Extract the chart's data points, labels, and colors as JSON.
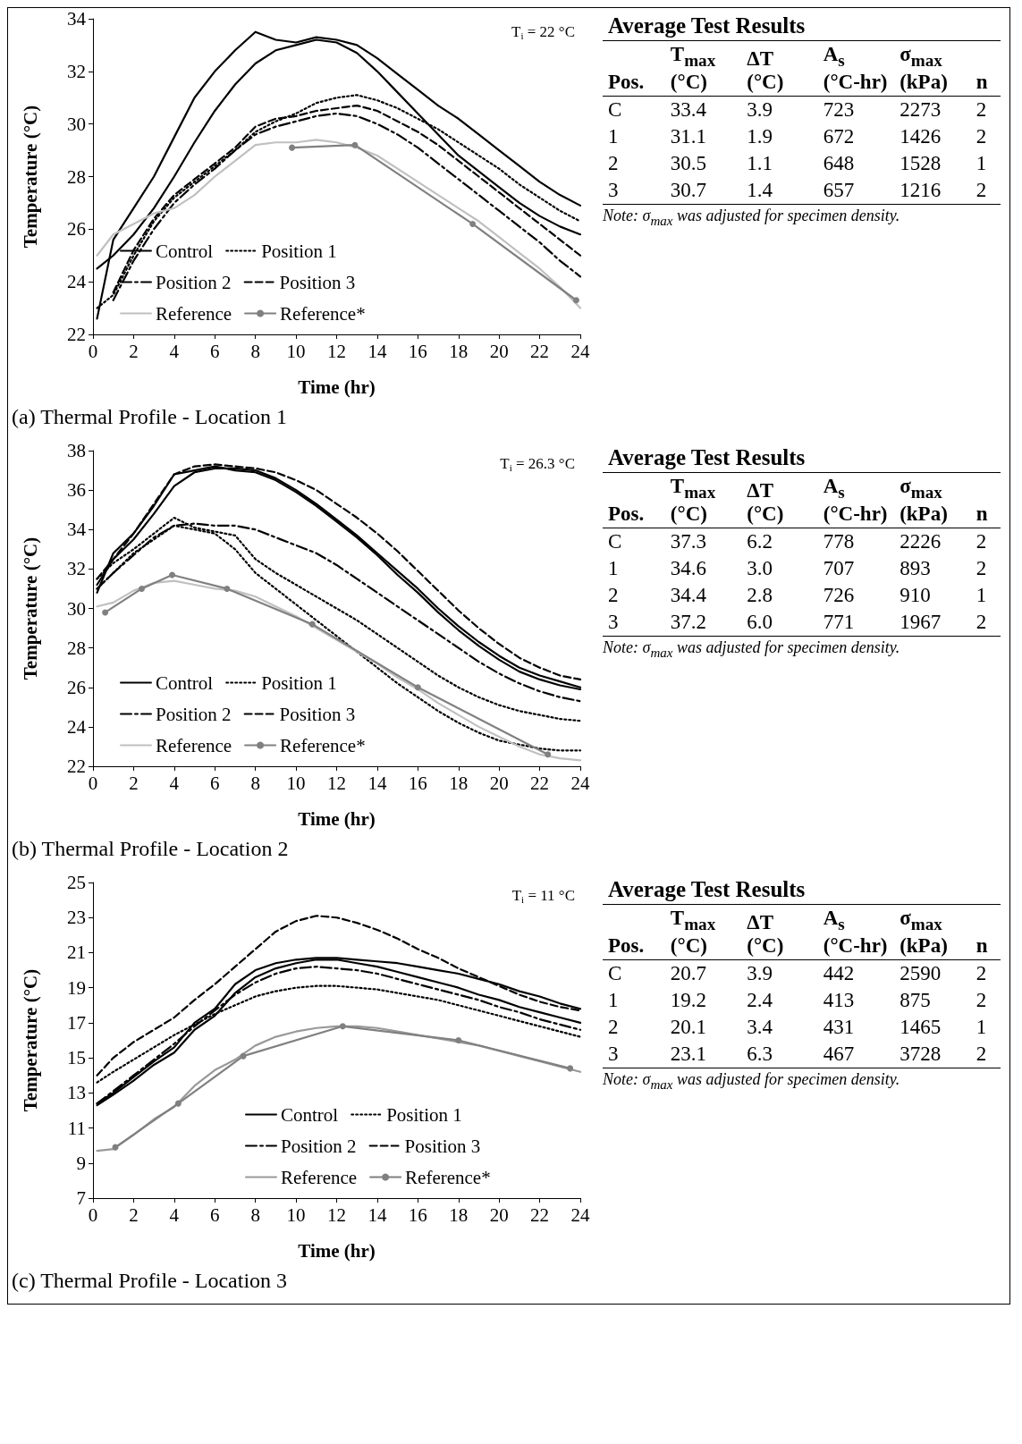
{
  "chart_data": [
    {
      "type": "line",
      "xlabel": "Time (hr)",
      "ylabel": "Temperature (°C)",
      "xlim": [
        0,
        24
      ],
      "ylim": [
        22,
        34
      ],
      "xticks": [
        0,
        2,
        4,
        6,
        8,
        10,
        12,
        14,
        16,
        18,
        20,
        22,
        24
      ],
      "yticks": [
        22,
        24,
        26,
        28,
        30,
        32,
        34
      ],
      "grid": false,
      "legend": "bottom left",
      "annotations": [
        "T$_{i}$ = 22 °C",
        "(a) Thermal Profile - Location 1"
      ],
      "x": [
        0.2,
        1,
        2,
        3,
        4,
        5,
        6,
        7,
        8,
        9,
        10,
        11,
        12,
        13,
        14,
        15,
        16,
        17,
        18,
        19,
        20,
        21,
        22,
        23,
        24
      ],
      "series": [
        {
          "name": "Control",
          "color": "#000000",
          "line_style": "solid",
          "marker": "none",
          "values": [
            22.6,
            25.6,
            26.8,
            28.0,
            29.5,
            31.0,
            32.0,
            32.8,
            33.5,
            33.2,
            33.1,
            33.3,
            33.2,
            33.0,
            32.5,
            31.9,
            31.3,
            30.7,
            30.2,
            29.6,
            29.0,
            28.4,
            27.8,
            27.3,
            26.9
          ]
        },
        {
          "color": "#000000",
          "line_style": "solid",
          "marker": "none",
          "values": [
            24.5,
            25.0,
            25.8,
            26.8,
            28.0,
            29.3,
            30.5,
            31.5,
            32.3,
            32.8,
            33.0,
            33.2,
            33.1,
            32.7,
            32.0,
            31.2,
            30.4,
            29.6,
            28.8,
            28.2,
            27.6,
            27.0,
            26.5,
            26.1,
            25.8
          ]
        },
        {
          "name": "Position 1",
          "color": "#000000",
          "line_style": "dotted",
          "marker": "none",
          "values": [
            23.0,
            23.5,
            25.0,
            26.3,
            27.2,
            27.8,
            28.4,
            29.0,
            29.7,
            30.1,
            30.4,
            30.8,
            31.0,
            31.1,
            30.9,
            30.6,
            30.2,
            29.8,
            29.3,
            28.8,
            28.3,
            27.7,
            27.2,
            26.7,
            26.3
          ]
        },
        {
          "name": "Position 2",
          "color": "#000000",
          "line_style": "dashdot",
          "marker": "none",
          "values": [
            null,
            23.3,
            24.8,
            26.0,
            27.0,
            27.7,
            28.3,
            29.0,
            29.6,
            29.9,
            30.1,
            30.3,
            30.4,
            30.3,
            30.0,
            29.6,
            29.1,
            28.5,
            27.9,
            27.3,
            26.7,
            26.1,
            25.5,
            24.8,
            24.2
          ]
        },
        {
          "name": "Position 3",
          "color": "#000000",
          "line_style": "dashed",
          "marker": "none",
          "values": [
            null,
            23.6,
            25.2,
            26.4,
            27.3,
            27.9,
            28.5,
            29.1,
            29.9,
            30.2,
            30.3,
            30.5,
            30.6,
            30.7,
            30.5,
            30.1,
            29.7,
            29.2,
            28.6,
            28.0,
            27.4,
            26.8,
            26.2,
            25.6,
            25.0
          ]
        },
        {
          "name": "Reference",
          "color": "#c0c0c0",
          "line_style": "solid",
          "marker": "none",
          "values": [
            25.0,
            25.8,
            26.2,
            26.6,
            26.8,
            27.3,
            28.0,
            28.6,
            29.2,
            29.3,
            29.3,
            29.4,
            29.3,
            29.1,
            28.8,
            28.3,
            27.8,
            27.3,
            26.8,
            26.3,
            25.7,
            25.1,
            24.5,
            23.8,
            23.0
          ]
        },
        {
          "name": "Reference*",
          "color": "#808080",
          "line_style": "solid",
          "marker": "circle",
          "x": [
            9.8,
            12.9,
            18.7,
            23.8
          ],
          "values": [
            29.1,
            29.2,
            26.2,
            23.3
          ]
        }
      ]
    },
    {
      "type": "other",
      "title": "Average Test Results",
      "categories": [
        "Pos.",
        "T$_{max}$ (°C)",
        "ΔT (°C)",
        "A$_{s}$ (°C-hr)",
        "σ$_{max}$ (kPa)",
        "n"
      ],
      "cell_labels": [
        [
          "C",
          "33.4",
          "3.9",
          "723",
          "2273",
          "2"
        ],
        [
          "1",
          "31.1",
          "1.9",
          "672",
          "1426",
          "2"
        ],
        [
          "2",
          "30.5",
          "1.1",
          "648",
          "1528",
          "1"
        ],
        [
          "3",
          "30.7",
          "1.4",
          "657",
          "1216",
          "2"
        ]
      ],
      "annotations": [
        "Note: σ$_{max}$ was adjusted for specimen density."
      ]
    },
    {
      "type": "line",
      "xlabel": "Time (hr)",
      "ylabel": "Temperature (°C)",
      "xlim": [
        0,
        24
      ],
      "ylim": [
        22,
        38
      ],
      "xticks": [
        0,
        2,
        4,
        6,
        8,
        10,
        12,
        14,
        16,
        18,
        20,
        22,
        24
      ],
      "yticks": [
        22,
        24,
        26,
        28,
        30,
        32,
        34,
        36,
        38
      ],
      "grid": false,
      "legend": "bottom left",
      "annotations": [
        "T$_{i}$ = 26.3 °C",
        "(b) Thermal Profile - Location 2"
      ],
      "x": [
        0.2,
        1,
        2,
        3,
        4,
        5,
        6,
        7,
        8,
        9,
        10,
        11,
        12,
        13,
        14,
        15,
        16,
        17,
        18,
        19,
        20,
        21,
        22,
        23,
        24
      ],
      "series": [
        {
          "name": "Control",
          "color": "#000000",
          "line_style": "solid",
          "marker": "none",
          "values": [
            30.8,
            32.8,
            33.8,
            35.2,
            36.8,
            37.0,
            37.2,
            37.0,
            36.9,
            36.5,
            35.9,
            35.2,
            34.4,
            33.6,
            32.7,
            31.7,
            30.8,
            29.8,
            28.9,
            28.1,
            27.4,
            26.8,
            26.4,
            26.1,
            25.9
          ]
        },
        {
          "color": "#000000",
          "line_style": "solid",
          "marker": "none",
          "values": [
            31.2,
            32.5,
            33.5,
            34.8,
            36.2,
            36.9,
            37.1,
            37.1,
            37.0,
            36.6,
            36.0,
            35.3,
            34.5,
            33.7,
            32.8,
            31.9,
            31.0,
            30.0,
            29.1,
            28.3,
            27.6,
            27.0,
            26.6,
            26.3,
            26.0
          ]
        },
        {
          "name": "Position 1",
          "color": "#000000",
          "line_style": "dotted",
          "marker": "none",
          "values": [
            31.5,
            32.3,
            33.0,
            33.8,
            34.6,
            34.1,
            33.9,
            33.7,
            32.5,
            31.8,
            31.2,
            30.6,
            30.0,
            29.4,
            28.7,
            28.0,
            27.3,
            26.6,
            26.0,
            25.5,
            25.1,
            24.8,
            24.6,
            24.4,
            24.3
          ]
        },
        {
          "color": "#000000",
          "line_style": "dotted",
          "marker": "none",
          "values": [
            31.0,
            31.8,
            32.8,
            33.5,
            34.2,
            34.0,
            33.8,
            33.0,
            31.8,
            31.0,
            30.2,
            29.4,
            28.6,
            27.8,
            27.0,
            26.2,
            25.5,
            24.8,
            24.2,
            23.7,
            23.3,
            23.1,
            22.9,
            22.8,
            22.8
          ]
        },
        {
          "name": "Position 2",
          "color": "#000000",
          "line_style": "dashdot",
          "marker": "none",
          "values": [
            31.0,
            31.8,
            32.7,
            33.6,
            34.2,
            34.3,
            34.2,
            34.2,
            34.0,
            33.6,
            33.2,
            32.8,
            32.2,
            31.5,
            30.8,
            30.1,
            29.4,
            28.7,
            28.0,
            27.3,
            26.7,
            26.2,
            25.8,
            25.5,
            25.3
          ]
        },
        {
          "name": "Position 3",
          "color": "#000000",
          "line_style": "dashed",
          "marker": "none",
          "values": [
            31.5,
            32.5,
            33.8,
            35.3,
            36.8,
            37.2,
            37.3,
            37.2,
            37.1,
            36.9,
            36.5,
            36.0,
            35.3,
            34.6,
            33.8,
            32.9,
            31.9,
            30.9,
            29.9,
            29.0,
            28.2,
            27.5,
            27.0,
            26.6,
            26.4
          ]
        },
        {
          "name": "Reference",
          "color": "#c0c0c0",
          "line_style": "solid",
          "marker": "none",
          "values": [
            30.1,
            30.3,
            30.9,
            31.3,
            31.4,
            31.2,
            31.0,
            30.9,
            30.6,
            30.1,
            29.6,
            29.0,
            28.4,
            27.8,
            27.2,
            26.5,
            25.9,
            25.2,
            24.6,
            24.0,
            23.5,
            23.0,
            22.6,
            22.4,
            22.3
          ]
        },
        {
          "name": "Reference*",
          "color": "#808080",
          "line_style": "solid",
          "marker": "circle",
          "x": [
            0.6,
            2.4,
            3.9,
            6.6,
            10.8,
            16.0,
            22.4
          ],
          "values": [
            29.8,
            31.0,
            31.7,
            31.0,
            29.2,
            26.0,
            22.6
          ]
        }
      ]
    },
    {
      "type": "other",
      "title": "Average Test Results",
      "categories": [
        "Pos.",
        "T$_{max}$ (°C)",
        "ΔT (°C)",
        "A$_{s}$ (°C-hr)",
        "σ$_{max}$ (kPa)",
        "n"
      ],
      "cell_labels": [
        [
          "C",
          "37.3",
          "6.2",
          "778",
          "2226",
          "2"
        ],
        [
          "1",
          "34.6",
          "3.0",
          "707",
          "893",
          "2"
        ],
        [
          "2",
          "34.4",
          "2.8",
          "726",
          "910",
          "1"
        ],
        [
          "3",
          "37.2",
          "6.0",
          "771",
          "1967",
          "2"
        ]
      ],
      "annotations": [
        "Note: σ$_{max}$ was adjusted for specimen density."
      ]
    },
    {
      "type": "line",
      "xlabel": "Time (hr)",
      "ylabel": "Temperature (°C)",
      "xlim": [
        0,
        24
      ],
      "ylim": [
        7,
        25
      ],
      "xticks": [
        0,
        2,
        4,
        6,
        8,
        10,
        12,
        14,
        16,
        18,
        20,
        22,
        24
      ],
      "yticks": [
        7,
        9,
        11,
        13,
        15,
        17,
        19,
        21,
        23,
        25
      ],
      "grid": false,
      "legend": "bottom",
      "annotations": [
        "T$_{i}$ = 11 °C",
        "(c) Thermal Profile - Location 3"
      ],
      "x": [
        0.2,
        1,
        2,
        3,
        4,
        5,
        6,
        7,
        8,
        9,
        10,
        11,
        12,
        13,
        14,
        15,
        16,
        17,
        18,
        19,
        20,
        21,
        22,
        23,
        24
      ],
      "series": [
        {
          "name": "Control",
          "color": "#000000",
          "line_style": "solid",
          "marker": "none",
          "values": [
            12.4,
            13.0,
            13.9,
            14.8,
            15.6,
            17.0,
            17.8,
            19.2,
            20.0,
            20.4,
            20.6,
            20.7,
            20.7,
            20.6,
            20.5,
            20.4,
            20.2,
            20.0,
            19.8,
            19.5,
            19.2,
            18.8,
            18.5,
            18.1,
            17.8
          ]
        },
        {
          "color": "#000000",
          "line_style": "solid",
          "marker": "none",
          "values": [
            12.3,
            12.9,
            13.7,
            14.6,
            15.3,
            16.6,
            17.4,
            18.7,
            19.6,
            20.1,
            20.4,
            20.6,
            20.6,
            20.4,
            20.2,
            19.9,
            19.6,
            19.3,
            19.0,
            18.6,
            18.3,
            17.9,
            17.6,
            17.3,
            17.0
          ]
        },
        {
          "name": "Position 1",
          "color": "#000000",
          "line_style": "dotted",
          "marker": "none",
          "values": [
            13.6,
            14.2,
            14.9,
            15.6,
            16.3,
            16.9,
            17.5,
            18.0,
            18.5,
            18.8,
            19.0,
            19.1,
            19.1,
            19.0,
            18.9,
            18.7,
            18.5,
            18.3,
            18.0,
            17.7,
            17.4,
            17.1,
            16.8,
            16.5,
            16.2
          ]
        },
        {
          "name": "Position 2",
          "color": "#000000",
          "line_style": "dashdot",
          "marker": "none",
          "values": [
            12.4,
            13.1,
            14.0,
            14.9,
            15.8,
            16.8,
            17.7,
            18.6,
            19.3,
            19.8,
            20.1,
            20.2,
            20.1,
            20.0,
            19.8,
            19.5,
            19.2,
            18.9,
            18.6,
            18.3,
            17.9,
            17.6,
            17.2,
            16.9,
            16.6
          ]
        },
        {
          "name": "Position 3",
          "color": "#000000",
          "line_style": "dashed",
          "marker": "none",
          "values": [
            14.0,
            15.0,
            15.9,
            16.6,
            17.3,
            18.3,
            19.2,
            20.2,
            21.2,
            22.2,
            22.8,
            23.1,
            23.0,
            22.7,
            22.3,
            21.8,
            21.2,
            20.7,
            20.1,
            19.6,
            19.1,
            18.6,
            18.2,
            17.9,
            17.7
          ]
        },
        {
          "name": "Reference",
          "color": "#999999",
          "line_style": "solid",
          "marker": "none",
          "values": [
            9.7,
            9.8,
            10.6,
            11.5,
            12.2,
            13.4,
            14.3,
            14.9,
            15.7,
            16.2,
            16.5,
            16.7,
            16.8,
            16.8,
            16.7,
            16.5,
            16.3,
            16.1,
            15.9,
            15.7,
            15.4,
            15.1,
            14.8,
            14.5,
            14.2
          ]
        },
        {
          "name": "Reference*",
          "color": "#808080",
          "line_style": "solid",
          "marker": "circle",
          "x": [
            1.1,
            4.2,
            7.4,
            12.3,
            18.0,
            23.5
          ],
          "values": [
            9.9,
            12.4,
            15.1,
            16.8,
            16.0,
            14.4
          ]
        }
      ]
    },
    {
      "type": "other",
      "title": "Average Test Results",
      "categories": [
        "Pos.",
        "T$_{max}$ (°C)",
        "ΔT (°C)",
        "A$_{s}$ (°C-hr)",
        "σ$_{max}$ (kPa)",
        "n"
      ],
      "cell_labels": [
        [
          "C",
          "20.7",
          "3.9",
          "442",
          "2590",
          "2"
        ],
        [
          "1",
          "19.2",
          "2.4",
          "413",
          "875",
          "2"
        ],
        [
          "2",
          "20.1",
          "3.4",
          "431",
          "1465",
          "1"
        ],
        [
          "3",
          "23.1",
          "6.3",
          "467",
          "3728",
          "2"
        ]
      ],
      "annotations": [
        "Note: σ$_{max}$ was adjusted for specimen density."
      ]
    }
  ]
}
